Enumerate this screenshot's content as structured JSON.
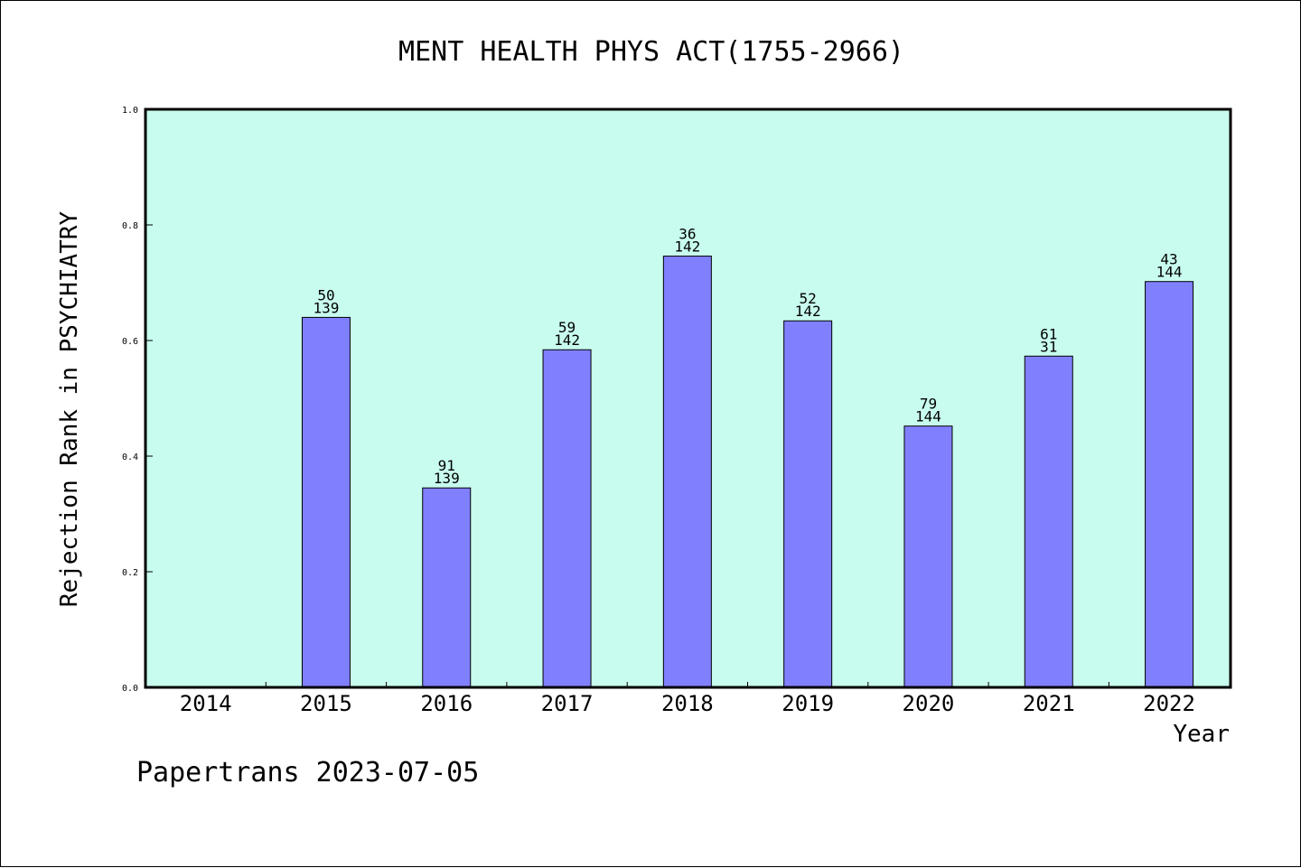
{
  "footer": {
    "text": "Papertrans 2023-07-05"
  },
  "chart_data": {
    "type": "bar",
    "title": "MENT HEALTH PHYS ACT(1755-2966)",
    "xlabel": "Year",
    "ylabel": "Rejection Rank in PSYCHIATRY",
    "ylim": [
      0.0,
      1.0
    ],
    "yticks": [
      "0.0",
      "0.2",
      "0.4",
      "0.6",
      "0.8",
      "1.0"
    ],
    "categories": [
      "2014",
      "2015",
      "2016",
      "2017",
      "2018",
      "2019",
      "2020",
      "2021",
      "2022"
    ],
    "values": [
      null,
      0.64,
      0.345,
      0.584,
      0.746,
      0.634,
      0.452,
      0.573,
      0.702
    ],
    "labels_top": [
      "",
      "50",
      "91",
      "59",
      "36",
      "52",
      "79",
      "61",
      "43"
    ],
    "labels_bottom": [
      "",
      "139",
      "139",
      "142",
      "142",
      "142",
      "144",
      "31",
      "144"
    ],
    "grid": false,
    "colors": {
      "plot_background": "#c8fcee",
      "bar_fill": "#8080ff",
      "bar_stroke": "#000000",
      "axis": "#000000"
    }
  }
}
